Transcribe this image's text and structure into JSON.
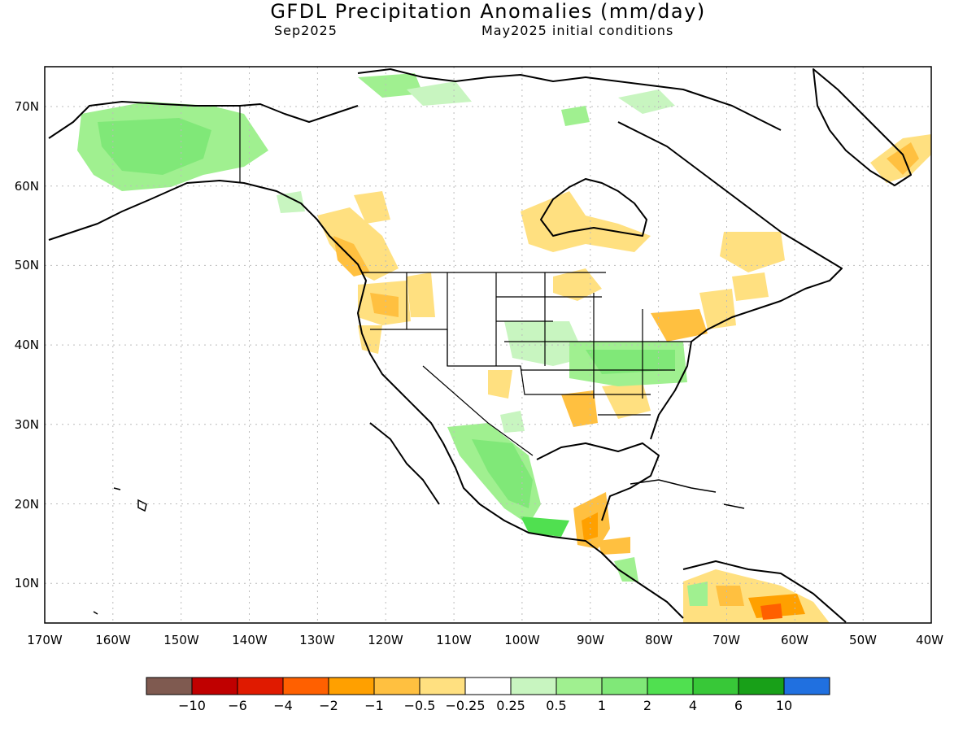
{
  "header": {
    "title": "GFDL Precipitation Anomalies (mm/day)",
    "valid_month": "Sep2025",
    "initial_conditions": "May2025 initial conditions"
  },
  "map": {
    "lon_range": [
      -170,
      -40
    ],
    "lat_range": [
      5,
      75
    ],
    "lon_ticks": [
      "170W",
      "160W",
      "150W",
      "140W",
      "130W",
      "120W",
      "110W",
      "100W",
      "90W",
      "80W",
      "70W",
      "60W",
      "50W",
      "40W"
    ],
    "lat_ticks": [
      "70N",
      "60N",
      "50N",
      "40N",
      "30N",
      "20N",
      "10N"
    ],
    "gridlines": true
  },
  "colorbar": {
    "colors": [
      "#7f5a50",
      "#c00000",
      "#e01a00",
      "#ff6000",
      "#ffa000",
      "#ffc040",
      "#ffe080",
      "#ffffff",
      "#c8f5c0",
      "#a0f090",
      "#80e878",
      "#50e050",
      "#38c838",
      "#18a018",
      "#2070e0"
    ],
    "labels": [
      "−10",
      "−6",
      "−4",
      "−2",
      "−1",
      "−0.5",
      "−0.25",
      "0.25",
      "0.5",
      "1",
      "2",
      "4",
      "6",
      "10"
    ]
  }
}
